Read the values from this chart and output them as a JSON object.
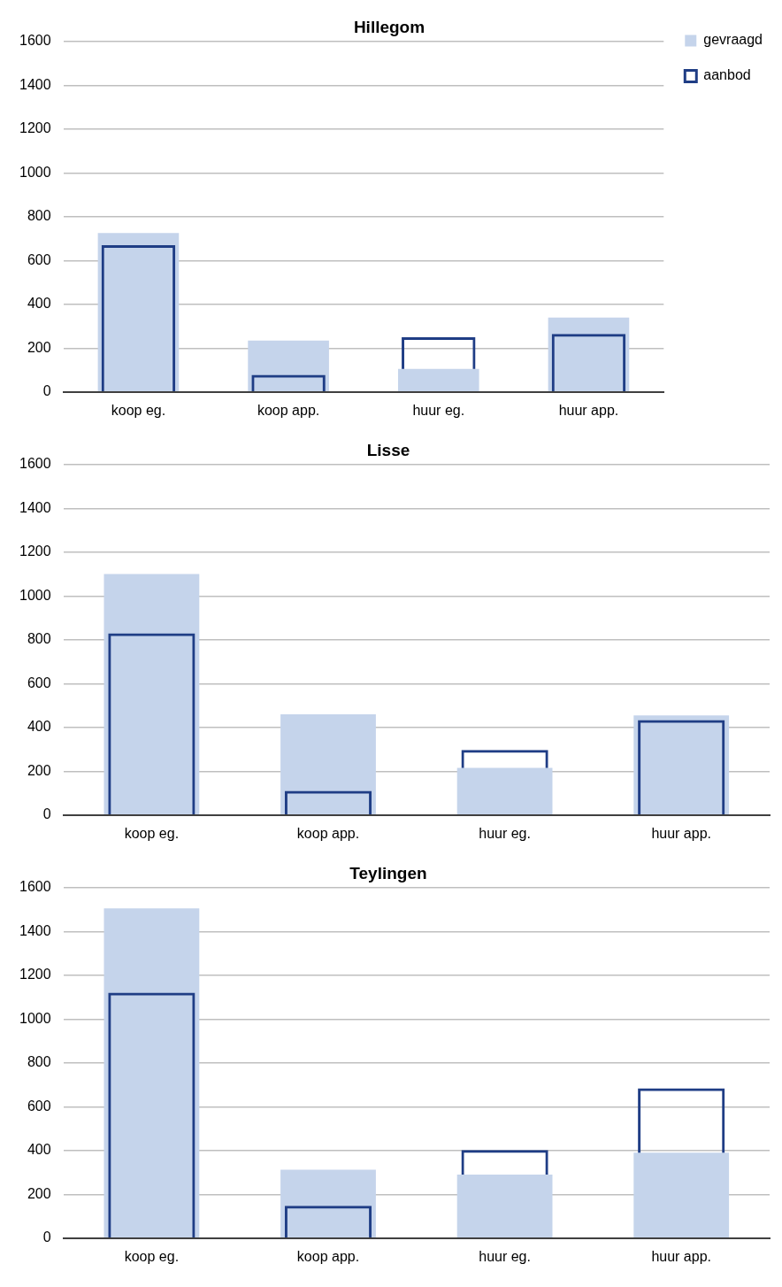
{
  "chart_data": [
    {
      "type": "bar",
      "title": "Hillegom",
      "categories": [
        "koop eg.",
        "koop app.",
        "huur eg.",
        "huur app."
      ],
      "series": [
        {
          "name": "gevraagd",
          "color": "#c5d4eb",
          "values": [
            725,
            235,
            105,
            340
          ]
        },
        {
          "name": "aanbod",
          "color": "#1f3d85",
          "values": [
            670,
            78,
            250,
            265
          ]
        }
      ],
      "ylim": [
        0,
        1600
      ],
      "yticks": [
        0,
        200,
        400,
        600,
        800,
        1000,
        1200,
        1400,
        1600
      ],
      "grid": "y",
      "legend": "top right"
    },
    {
      "type": "bar",
      "title": "Lisse",
      "categories": [
        "koop eg.",
        "koop app.",
        "huur eg.",
        "huur app."
      ],
      "series": [
        {
          "color": "#c5d4eb",
          "values": [
            1100,
            460,
            215,
            455
          ]
        },
        {
          "color": "#1f3d85",
          "values": [
            830,
            110,
            297,
            434
          ]
        }
      ],
      "ylim": [
        0,
        1600
      ],
      "yticks": [
        0,
        200,
        400,
        600,
        800,
        1000,
        1200,
        1400,
        1600
      ],
      "grid": "y"
    },
    {
      "type": "bar",
      "title": "Teylingen",
      "categories": [
        "koop eg.",
        "koop app.",
        "huur eg.",
        "huur app."
      ],
      "series": [
        {
          "color": "#c5d4eb",
          "values": [
            1505,
            312,
            290,
            390
          ]
        },
        {
          "color": "#1f3d85",
          "values": [
            1120,
            148,
            402,
            684
          ]
        }
      ],
      "ylim": [
        0,
        1600
      ],
      "yticks": [
        0,
        200,
        400,
        600,
        800,
        1000,
        1200,
        1400,
        1600
      ],
      "grid": "y"
    }
  ]
}
